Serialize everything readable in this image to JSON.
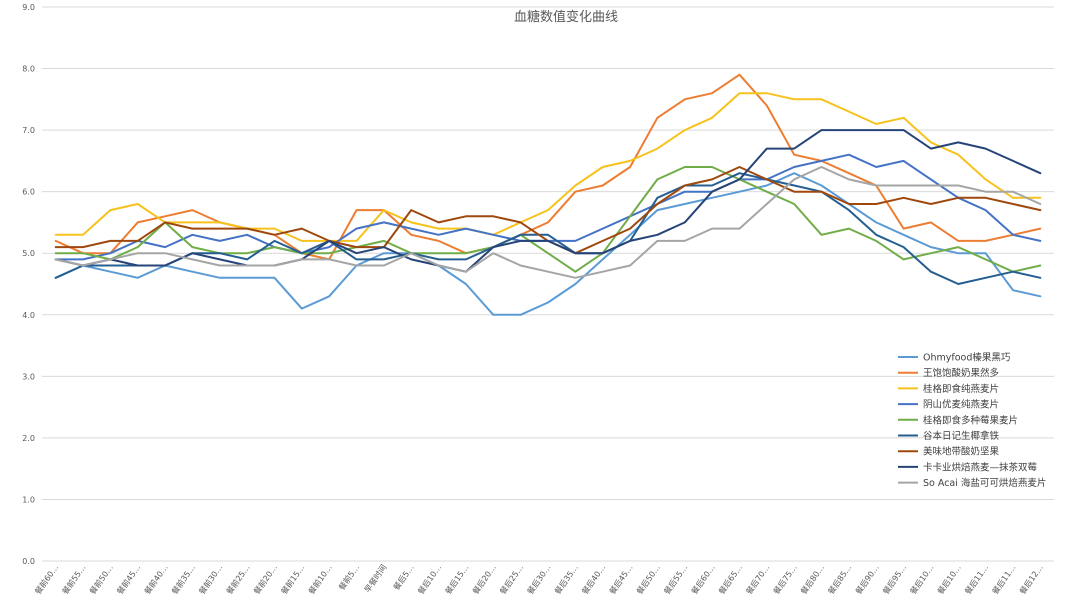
{
  "chart_data": {
    "type": "line",
    "title": "血糖数值变化曲线",
    "xlabel": "",
    "ylabel": "",
    "ylim": [
      0,
      9
    ],
    "yticks": [
      "0.0",
      "1.0",
      "2.0",
      "3.0",
      "4.0",
      "5.0",
      "6.0",
      "7.0",
      "8.0",
      "9.0"
    ],
    "grid": true,
    "legend": "right",
    "categories": [
      "餐前60…",
      "",
      "餐前50…",
      "餐前45…",
      "餐前40…",
      "餐前35…",
      "餐前30…",
      "餐前25…",
      "餐前20…",
      "餐前15…",
      "餐前10…",
      "餐前5…",
      "早餐时间",
      "餐后5…",
      "餐后10…",
      "餐后15…",
      "餐后20…",
      "餐后25…",
      "餐后30…",
      "餐后35…",
      "餐后40…",
      "餐后45…",
      "餐后50…",
      "餐后55…",
      "餐后60…",
      "餐后65…",
      "餐后70…",
      "餐后75…",
      "餐后80…",
      "餐后85…",
      "餐后90…",
      "餐后95…",
      "餐后10…",
      "餐后10…",
      "餐后11…",
      "餐后11…",
      "餐后12…"
    ],
    "x_tick_labels": [
      "餐前60…",
      "餐前55…",
      "餐前50…",
      "餐前45…",
      "餐前40…",
      "餐前35…",
      "餐前30…",
      "餐前25…",
      "餐前20…",
      "餐前15…",
      "餐前10…",
      "餐前5…",
      "早餐时间",
      "餐后5…",
      "餐后10…",
      "餐后15…",
      "餐后20…",
      "餐后25…",
      "餐后30…",
      "餐后35…",
      "餐后40…",
      "餐后45…",
      "餐后50…",
      "餐后55…",
      "餐后60…",
      "餐后65…",
      "餐后70…",
      "餐后75…",
      "餐后80…",
      "餐后85…",
      "餐后90…",
      "餐后95…",
      "餐后10…",
      "餐后10…",
      "餐后11…",
      "餐后11…",
      "餐后12…"
    ],
    "series": [
      {
        "name": "Ohmyfood榛果黑巧",
        "color": "#5b9bd5",
        "values": [
          4.6,
          4.8,
          4.7,
          4.6,
          4.8,
          4.7,
          4.6,
          4.6,
          4.6,
          4.1,
          4.3,
          4.8,
          5.0,
          5.0,
          4.8,
          4.5,
          4.0,
          4.0,
          4.2,
          4.5,
          4.9,
          5.3,
          5.7,
          5.8,
          5.9,
          6.0,
          6.1,
          6.3,
          6.1,
          5.8,
          5.5,
          5.3,
          5.1,
          5.0,
          5.0,
          4.4,
          4.3
        ]
      },
      {
        "name": "王饱饱酸奶果然多",
        "color": "#ed7d31",
        "values": [
          5.2,
          5.0,
          5.0,
          5.5,
          5.6,
          5.7,
          5.5,
          5.4,
          5.3,
          5.0,
          4.9,
          5.7,
          5.7,
          5.3,
          5.2,
          5.0,
          5.1,
          5.3,
          5.5,
          6.0,
          6.1,
          6.4,
          7.2,
          7.5,
          7.6,
          7.9,
          7.4,
          6.6,
          6.5,
          6.3,
          6.1,
          5.4,
          5.5,
          5.2,
          5.2,
          5.3,
          5.4
        ]
      },
      {
        "name": "桂格即食纯燕麦片",
        "color": "#f6c21b",
        "values": [
          5.3,
          5.3,
          5.7,
          5.8,
          5.5,
          5.5,
          5.5,
          5.4,
          5.4,
          5.2,
          5.2,
          5.2,
          5.7,
          5.5,
          5.4,
          5.4,
          5.3,
          5.5,
          5.7,
          6.1,
          6.4,
          6.5,
          6.7,
          7.0,
          7.2,
          7.6,
          7.6,
          7.5,
          7.5,
          7.3,
          7.1,
          7.2,
          6.8,
          6.6,
          6.2,
          5.9,
          5.9
        ]
      },
      {
        "name": "阴山优麦纯燕麦片",
        "color": "#4472c4",
        "values": [
          4.9,
          4.9,
          5.0,
          5.2,
          5.1,
          5.3,
          5.2,
          5.3,
          5.1,
          5.0,
          5.1,
          5.4,
          5.5,
          5.4,
          5.3,
          5.4,
          5.3,
          5.2,
          5.2,
          5.2,
          5.4,
          5.6,
          5.8,
          6.0,
          6.0,
          6.2,
          6.2,
          6.4,
          6.5,
          6.6,
          6.4,
          6.5,
          6.2,
          5.9,
          5.7,
          5.3,
          5.2
        ]
      },
      {
        "name": "桂格即食多种莓果麦片",
        "color": "#70ad47",
        "values": [
          5.0,
          5.0,
          4.9,
          5.1,
          5.5,
          5.1,
          5.0,
          5.0,
          5.1,
          5.0,
          5.0,
          5.1,
          5.2,
          5.0,
          5.0,
          5.0,
          5.1,
          5.3,
          5.0,
          4.7,
          5.0,
          5.6,
          6.2,
          6.4,
          6.4,
          6.2,
          6.0,
          5.8,
          5.3,
          5.4,
          5.2,
          4.9,
          5.0,
          5.1,
          4.9,
          4.7,
          4.8
        ]
      },
      {
        "name": "谷本日记生椰拿铁",
        "color": "#255e91",
        "values": [
          4.6,
          4.8,
          4.8,
          4.8,
          4.8,
          5.0,
          5.0,
          4.9,
          5.2,
          5.0,
          5.2,
          4.9,
          4.9,
          5.0,
          4.9,
          4.9,
          5.1,
          5.3,
          5.3,
          5.0,
          5.0,
          5.2,
          5.9,
          6.1,
          6.1,
          6.3,
          6.2,
          6.1,
          6.0,
          5.7,
          5.3,
          5.1,
          4.7,
          4.5,
          4.6,
          4.7,
          4.6
        ]
      },
      {
        "name": "美味地带酸奶坚果",
        "color": "#9e480e",
        "values": [
          5.1,
          5.1,
          5.2,
          5.2,
          5.5,
          5.4,
          5.4,
          5.4,
          5.3,
          5.4,
          5.2,
          5.1,
          5.1,
          5.7,
          5.5,
          5.6,
          5.6,
          5.5,
          5.2,
          5.0,
          5.2,
          5.4,
          5.8,
          6.1,
          6.2,
          6.4,
          6.2,
          6.0,
          6.0,
          5.8,
          5.8,
          5.9,
          5.8,
          5.9,
          5.9,
          5.8,
          5.7
        ]
      },
      {
        "name": "卡卡业烘焙燕麦—抹茶双莓",
        "color": "#264478",
        "values": [
          4.9,
          4.8,
          4.9,
          4.8,
          4.8,
          5.0,
          4.9,
          4.8,
          4.8,
          4.9,
          5.2,
          5.0,
          5.1,
          4.9,
          4.8,
          4.7,
          5.1,
          5.2,
          5.2,
          5.0,
          5.0,
          5.2,
          5.3,
          5.5,
          6.0,
          6.2,
          6.7,
          6.7,
          7.0,
          7.0,
          7.0,
          7.0,
          6.7,
          6.8,
          6.7,
          6.5,
          6.3
        ]
      },
      {
        "name": "So Acai 海盐可可烘焙燕麦片",
        "color": "#a5a5a5",
        "values": [
          4.9,
          4.8,
          4.9,
          5.0,
          5.0,
          4.9,
          4.8,
          4.8,
          4.8,
          4.9,
          4.9,
          4.8,
          4.8,
          5.0,
          4.8,
          4.7,
          5.0,
          4.8,
          4.7,
          4.6,
          4.7,
          4.8,
          5.2,
          5.2,
          5.4,
          5.4,
          5.8,
          6.2,
          6.4,
          6.2,
          6.1,
          6.1,
          6.1,
          6.1,
          6.0,
          6.0,
          5.8
        ]
      }
    ]
  }
}
